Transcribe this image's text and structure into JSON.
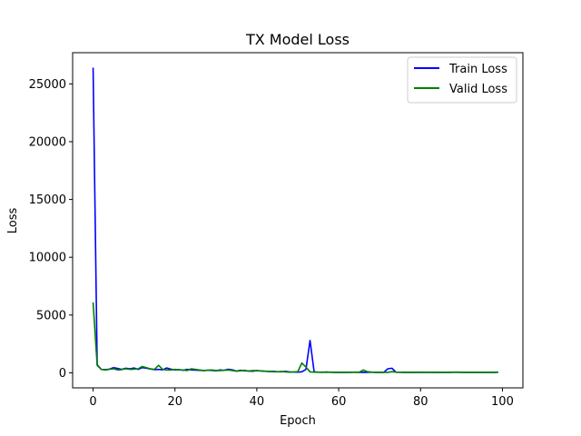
{
  "chart_data": {
    "type": "line",
    "title": "TX Model Loss",
    "xlabel": "Epoch",
    "ylabel": "Loss",
    "xlim": [
      -5,
      105
    ],
    "ylim": [
      -1300,
      27700
    ],
    "xticks": [
      0,
      20,
      40,
      60,
      80,
      100
    ],
    "yticks": [
      0,
      5000,
      10000,
      15000,
      20000,
      25000
    ],
    "xtick_labels": [
      "0",
      "20",
      "40",
      "60",
      "80",
      "100"
    ],
    "ytick_labels": [
      "0",
      "5000",
      "10000",
      "15000",
      "20000",
      "25000"
    ],
    "grid": false,
    "legend_position": "top-right",
    "x": [
      0,
      1,
      2,
      3,
      4,
      5,
      6,
      7,
      8,
      9,
      10,
      11,
      12,
      13,
      14,
      15,
      16,
      17,
      18,
      19,
      20,
      21,
      22,
      23,
      24,
      25,
      26,
      27,
      28,
      29,
      30,
      31,
      32,
      33,
      34,
      35,
      36,
      37,
      38,
      39,
      40,
      41,
      42,
      43,
      44,
      45,
      46,
      47,
      48,
      49,
      50,
      51,
      52,
      53,
      54,
      55,
      56,
      57,
      58,
      59,
      60,
      61,
      62,
      63,
      64,
      65,
      66,
      67,
      68,
      69,
      70,
      71,
      72,
      73,
      74,
      75,
      76,
      77,
      78,
      79,
      80,
      81,
      82,
      83,
      84,
      85,
      86,
      87,
      88,
      89,
      90,
      91,
      92,
      93,
      94,
      95,
      96,
      97,
      98,
      99
    ],
    "series": [
      {
        "name": "Train Loss",
        "color": "#0000ff",
        "values": [
          26400,
          700,
          300,
          280,
          320,
          450,
          380,
          300,
          400,
          350,
          420,
          300,
          450,
          400,
          330,
          280,
          300,
          260,
          420,
          320,
          260,
          280,
          230,
          300,
          260,
          240,
          220,
          200,
          230,
          210,
          180,
          250,
          220,
          310,
          260,
          150,
          220,
          180,
          160,
          140,
          200,
          160,
          140,
          120,
          130,
          100,
          90,
          130,
          80,
          70,
          60,
          90,
          300,
          2800,
          80,
          60,
          50,
          70,
          50,
          40,
          50,
          40,
          40,
          50,
          50,
          40,
          50,
          40,
          60,
          40,
          50,
          40,
          350,
          400,
          50,
          50,
          40,
          40,
          50,
          40,
          50,
          40,
          40,
          40,
          50,
          40,
          40,
          40,
          50,
          60,
          50,
          40,
          40,
          40,
          40,
          50,
          40,
          40,
          40,
          60
        ]
      },
      {
        "name": "Valid Loss",
        "color": "#008000",
        "values": [
          6100,
          650,
          300,
          250,
          300,
          350,
          250,
          280,
          350,
          300,
          320,
          350,
          550,
          450,
          350,
          300,
          650,
          300,
          250,
          250,
          300,
          250,
          250,
          200,
          350,
          300,
          250,
          200,
          220,
          250,
          200,
          200,
          220,
          250,
          200,
          150,
          180,
          220,
          150,
          200,
          180,
          170,
          140,
          120,
          100,
          90,
          120,
          80,
          60,
          70,
          100,
          850,
          500,
          80,
          60,
          50,
          60,
          40,
          60,
          40,
          40,
          50,
          40,
          40,
          60,
          50,
          250,
          100,
          60,
          40,
          50,
          40,
          40,
          100,
          60,
          50,
          40,
          40,
          50,
          40,
          60,
          50,
          50,
          40,
          40,
          50,
          40,
          40,
          60,
          50,
          40,
          50,
          40,
          50,
          40,
          40,
          40,
          50,
          40,
          50
        ]
      }
    ]
  }
}
